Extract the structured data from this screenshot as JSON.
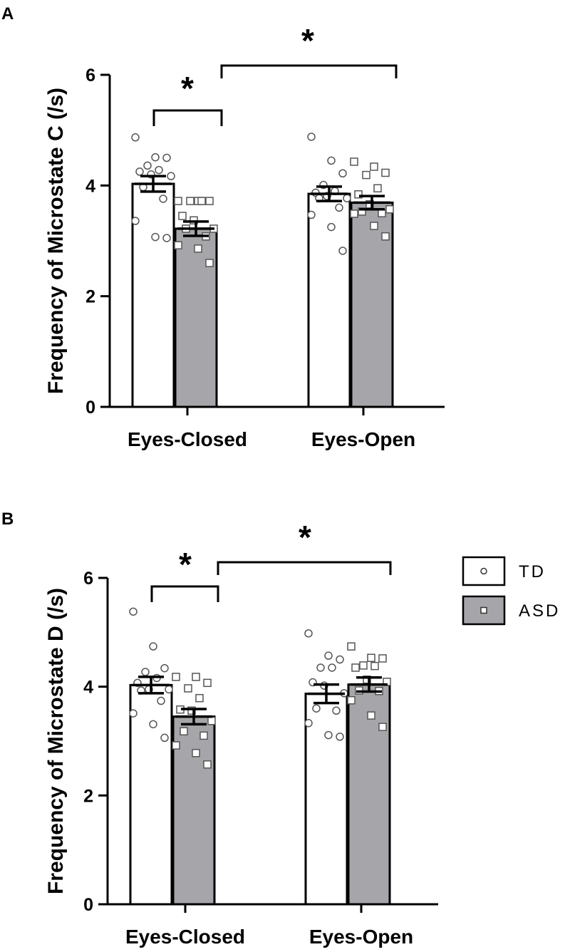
{
  "legend": {
    "items": [
      {
        "label": "TD",
        "fill": "#ffffff",
        "marker": "circle"
      },
      {
        "label": "ASD",
        "fill": "#a6a6aa",
        "marker": "square"
      }
    ]
  },
  "chart_data": [
    {
      "type": "bar",
      "panel": "A",
      "ylabel": "Frequency of Microstate C  (/s)",
      "ylim": [
        0,
        6
      ],
      "yticks": [
        0,
        2,
        4,
        6
      ],
      "categories": [
        "Eyes-Closed",
        "Eyes-Open"
      ],
      "series": [
        {
          "name": "TD",
          "values": [
            4.03,
            3.85
          ],
          "sem": [
            0.14,
            0.13
          ],
          "color": "#ffffff",
          "marker": "circle",
          "points": [
            [
              4.87,
              4.51,
              4.5,
              4.36,
              4.28,
              4.25,
              4.2,
              4.17,
              3.97,
              3.76,
              3.36,
              3.07,
              3.05
            ],
            [
              4.88,
              4.45,
              4.22,
              4.01,
              3.9,
              3.87,
              3.81,
              3.77,
              3.77,
              3.6,
              3.47,
              3.25,
              2.82
            ]
          ]
        },
        {
          "name": "ASD",
          "values": [
            3.22,
            3.69
          ],
          "sem": [
            0.13,
            0.12
          ],
          "color": "#a6a6aa",
          "marker": "square",
          "points": [
            [
              3.72,
              3.72,
              3.72,
              3.72,
              3.72,
              3.45,
              3.37,
              3.22,
              3.22,
              3.08,
              2.92,
              2.86,
              2.6
            ],
            [
              4.43,
              4.34,
              4.23,
              4.19,
              3.95,
              3.84,
              3.66,
              3.57,
              3.53,
              3.5,
              3.49,
              3.27,
              3.08
            ]
          ]
        }
      ],
      "significance": [
        {
          "label": "*",
          "from": [
            "Eyes-Closed",
            "TD"
          ],
          "to": [
            "Eyes-Closed",
            "ASD"
          ]
        },
        {
          "label": "*",
          "from": [
            "Eyes-Closed",
            "ASD"
          ],
          "to": [
            "Eyes-Open",
            "ASD"
          ]
        }
      ]
    },
    {
      "type": "bar",
      "panel": "B",
      "ylabel": "Frequency of Microstate D (/s)",
      "ylim": [
        0,
        6
      ],
      "yticks": [
        0,
        2,
        4,
        6
      ],
      "categories": [
        "Eyes-Closed",
        "Eyes-Open"
      ],
      "series": [
        {
          "name": "TD",
          "values": [
            4.03,
            3.87
          ],
          "sem": [
            0.15,
            0.17
          ],
          "color": "#ffffff",
          "marker": "circle",
          "points": [
            [
              5.38,
              4.74,
              4.34,
              4.27,
              4.16,
              4.07,
              3.95,
              3.95,
              3.93,
              3.74,
              3.51,
              3.31,
              3.06
            ],
            [
              4.98,
              4.57,
              4.5,
              4.35,
              4.35,
              4.08,
              4.02,
              3.88,
              3.6,
              3.56,
              3.33,
              3.11,
              3.08
            ]
          ]
        },
        {
          "name": "ASD",
          "values": [
            3.45,
            4.04
          ],
          "sem": [
            0.14,
            0.13
          ],
          "color": "#a6a6aa",
          "marker": "square",
          "points": [
            [
              4.18,
              4.18,
              4.07,
              3.97,
              3.79,
              3.58,
              3.56,
              3.37,
              3.18,
              3.1,
              2.92,
              2.78,
              2.57
            ],
            [
              4.74,
              4.53,
              4.52,
              4.39,
              4.38,
              4.35,
              4.13,
              4.09,
              3.93,
              3.92,
              3.75,
              3.47,
              3.26
            ]
          ]
        }
      ],
      "significance": [
        {
          "label": "*",
          "from": [
            "Eyes-Closed",
            "TD"
          ],
          "to": [
            "Eyes-Closed",
            "ASD"
          ]
        },
        {
          "label": "*",
          "from": [
            "Eyes-Closed",
            "ASD"
          ],
          "to": [
            "Eyes-Open",
            "ASD"
          ]
        }
      ]
    }
  ]
}
